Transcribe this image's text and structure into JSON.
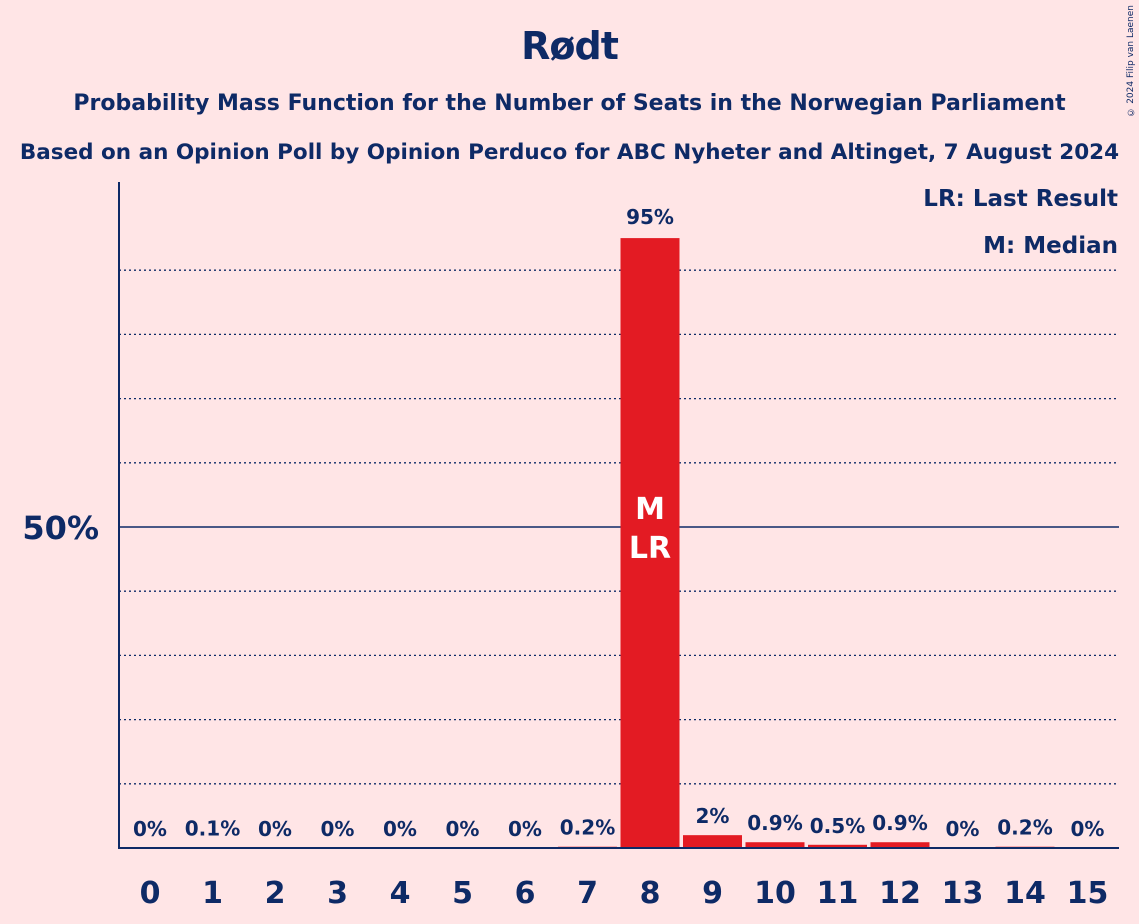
{
  "title": "Rødt",
  "subtitle1": "Probability Mass Function for the Number of Seats in the Norwegian Parliament",
  "subtitle2": "Based on an Opinion Poll by Opinion Perduco for ABC Nyheter and Altinget, 7 August 2024",
  "copyright": "© 2024 Filip van Laenen",
  "legend": {
    "last_result": "LR: Last Result",
    "median": "M: Median"
  },
  "colors": {
    "background": "#FFE5E6",
    "bar": "#E31B23",
    "text": "#0E2A66"
  },
  "chart_data": {
    "type": "bar",
    "categories": [
      "0",
      "1",
      "2",
      "3",
      "4",
      "5",
      "6",
      "7",
      "8",
      "9",
      "10",
      "11",
      "12",
      "13",
      "14",
      "15"
    ],
    "values": [
      0,
      0.1,
      0,
      0,
      0,
      0,
      0,
      0.2,
      95,
      2,
      0.9,
      0.5,
      0.9,
      0,
      0.2,
      0
    ],
    "labels": [
      "0%",
      "0.1%",
      "0%",
      "0%",
      "0%",
      "0%",
      "0%",
      "0.2%",
      "95%",
      "2%",
      "0.9%",
      "0.5%",
      "0.9%",
      "0%",
      "0.2%",
      "0%"
    ],
    "ylim": [
      0,
      100
    ],
    "y_tick_label": "50%",
    "y_tick_value": 50,
    "gridlines_dotted": [
      10,
      20,
      30,
      40,
      60,
      70,
      80,
      90
    ],
    "median_seat": "8",
    "last_result_seat": "8",
    "bar_markers": [
      "M",
      "LR"
    ]
  }
}
